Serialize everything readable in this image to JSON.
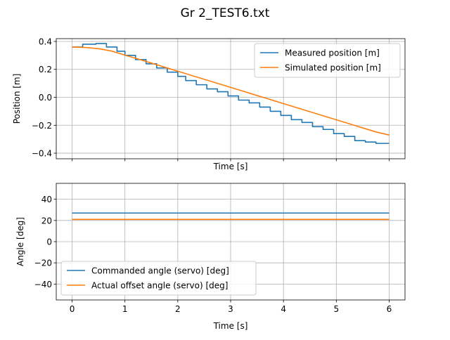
{
  "figure": {
    "title": "Gr 2_TEST6.txt"
  },
  "colors": {
    "blue": "#1f77b4",
    "orange": "#ff7f0e",
    "grid": "#b0b0b0"
  },
  "chart_data": [
    {
      "type": "line",
      "xlabel": "Time [s]",
      "ylabel": "Position [m]",
      "xlim": [
        -0.3,
        6.3
      ],
      "ylim": [
        -0.44,
        0.42
      ],
      "xticks": [
        0,
        1,
        2,
        3,
        4,
        5,
        6
      ],
      "yticks": [
        0.4,
        0.2,
        0.0,
        -0.2,
        -0.4
      ],
      "ytick_labels": [
        "0.4",
        "0.2",
        "0.0",
        "−0.2",
        "−0.4"
      ],
      "xtick_labels_visible": false,
      "grid": true,
      "legend": "upper right",
      "series": [
        {
          "name": "Measured position [m]",
          "color": "#1f77b4",
          "step": true,
          "x": [
            0,
            0.2,
            0.45,
            0.65,
            0.85,
            1.0,
            1.2,
            1.4,
            1.6,
            1.8,
            2.0,
            2.15,
            2.35,
            2.55,
            2.75,
            2.95,
            3.15,
            3.35,
            3.55,
            3.75,
            3.95,
            4.15,
            4.35,
            4.55,
            4.75,
            4.95,
            5.15,
            5.35,
            5.55,
            5.75,
            6.0
          ],
          "y": [
            0.36,
            0.38,
            0.385,
            0.36,
            0.33,
            0.3,
            0.27,
            0.24,
            0.21,
            0.18,
            0.15,
            0.12,
            0.09,
            0.06,
            0.04,
            0.01,
            -0.02,
            -0.04,
            -0.07,
            -0.1,
            -0.13,
            -0.16,
            -0.18,
            -0.21,
            -0.23,
            -0.26,
            -0.28,
            -0.31,
            -0.32,
            -0.33,
            -0.33
          ]
        },
        {
          "name": "Simulated position [m]",
          "color": "#ff7f0e",
          "step": false,
          "x": [
            0,
            0.25,
            0.5,
            0.75,
            1.0,
            1.25,
            1.5,
            1.75,
            2.0,
            2.25,
            2.5,
            2.75,
            3.0,
            3.25,
            3.5,
            3.75,
            4.0,
            4.25,
            4.5,
            4.75,
            5.0,
            5.25,
            5.5,
            5.75,
            6.0
          ],
          "y": [
            0.36,
            0.357,
            0.348,
            0.331,
            0.302,
            0.274,
            0.245,
            0.216,
            0.187,
            0.158,
            0.129,
            0.1,
            0.071,
            0.042,
            0.013,
            -0.016,
            -0.045,
            -0.074,
            -0.103,
            -0.132,
            -0.161,
            -0.19,
            -0.219,
            -0.248,
            -0.27
          ]
        }
      ]
    },
    {
      "type": "line",
      "xlabel": "Time [s]",
      "ylabel": "Angle [deg]",
      "xlim": [
        -0.3,
        6.3
      ],
      "ylim": [
        -55,
        55
      ],
      "xticks": [
        0,
        1,
        2,
        3,
        4,
        5,
        6
      ],
      "xtick_labels": [
        "0",
        "1",
        "2",
        "3",
        "4",
        "5",
        "6"
      ],
      "yticks": [
        40,
        20,
        0,
        -20,
        -40
      ],
      "ytick_labels": [
        "40",
        "20",
        "0",
        "−20",
        "−40"
      ],
      "grid": true,
      "legend": "lower left",
      "series": [
        {
          "name": "Commanded angle (servo) [deg]",
          "color": "#1f77b4",
          "x": [
            0,
            6
          ],
          "y": [
            27,
            27
          ]
        },
        {
          "name": "Actual offset angle (servo) [deg]",
          "color": "#ff7f0e",
          "x": [
            0,
            6
          ],
          "y": [
            21,
            21
          ]
        }
      ]
    }
  ]
}
